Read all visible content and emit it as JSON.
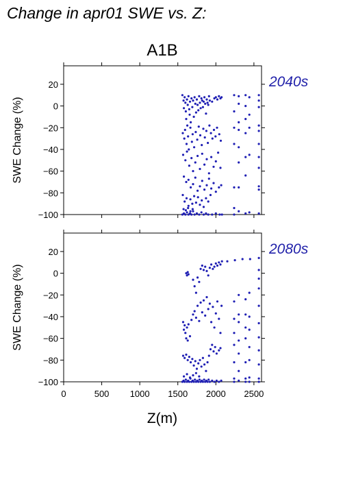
{
  "figure": {
    "title": "Change in apr01 SWE vs. Z:",
    "scenario": "A1B",
    "xlabel": "Z(m)"
  },
  "colors": {
    "points": "#1f1fb4",
    "period_label": "#2222aa",
    "axis": "#000000"
  },
  "chart_data": [
    {
      "type": "scatter",
      "period": "2040s",
      "ylabel": "SWE Change (%)",
      "xlim": [
        0,
        2600
      ],
      "ylim": [
        -100,
        37
      ],
      "xticks": [
        0,
        500,
        1000,
        1500,
        2000,
        2500
      ],
      "yticks": [
        -100,
        -80,
        -60,
        -40,
        -20,
        0,
        20
      ],
      "xticklabels_shown": false,
      "points": [
        [
          1560,
          10
        ],
        [
          1575,
          5
        ],
        [
          1580,
          -2
        ],
        [
          1590,
          8
        ],
        [
          1600,
          3
        ],
        [
          1605,
          -5
        ],
        [
          1610,
          -12
        ],
        [
          1620,
          6
        ],
        [
          1625,
          -18
        ],
        [
          1630,
          1
        ],
        [
          1640,
          9
        ],
        [
          1650,
          -3
        ],
        [
          1655,
          -8
        ],
        [
          1660,
          4
        ],
        [
          1670,
          -15
        ],
        [
          1680,
          7
        ],
        [
          1690,
          -1
        ],
        [
          1700,
          5
        ],
        [
          1710,
          -10
        ],
        [
          1720,
          8
        ],
        [
          1730,
          2
        ],
        [
          1740,
          -6
        ],
        [
          1750,
          6
        ],
        [
          1760,
          1
        ],
        [
          1770,
          -4
        ],
        [
          1780,
          9
        ],
        [
          1790,
          3
        ],
        [
          1800,
          -2
        ],
        [
          1810,
          7
        ],
        [
          1820,
          5
        ],
        [
          1830,
          -1
        ],
        [
          1840,
          4
        ],
        [
          1850,
          8
        ],
        [
          1860,
          2
        ],
        [
          1870,
          -7
        ],
        [
          1880,
          6
        ],
        [
          1890,
          3
        ],
        [
          1900,
          1
        ],
        [
          1910,
          9
        ],
        [
          1920,
          5
        ],
        [
          1950,
          4
        ],
        [
          1980,
          7
        ],
        [
          2000,
          8
        ],
        [
          2020,
          6
        ],
        [
          2040,
          9
        ],
        [
          2060,
          7
        ],
        [
          2075,
          8
        ],
        [
          1565,
          -25
        ],
        [
          1585,
          -30
        ],
        [
          1595,
          -22
        ],
        [
          1615,
          -35
        ],
        [
          1635,
          -28
        ],
        [
          1645,
          -40
        ],
        [
          1665,
          -20
        ],
        [
          1685,
          -33
        ],
        [
          1695,
          -26
        ],
        [
          1715,
          -38
        ],
        [
          1735,
          -24
        ],
        [
          1755,
          -31
        ],
        [
          1775,
          -19
        ],
        [
          1795,
          -27
        ],
        [
          1815,
          -36
        ],
        [
          1835,
          -21
        ],
        [
          1855,
          -29
        ],
        [
          1875,
          -23
        ],
        [
          1895,
          -34
        ],
        [
          1915,
          -18
        ],
        [
          1935,
          -25
        ],
        [
          1955,
          -30
        ],
        [
          1975,
          -22
        ],
        [
          1995,
          -28
        ],
        [
          2015,
          -20
        ],
        [
          2045,
          -26
        ],
        [
          2065,
          -32
        ],
        [
          1570,
          -45
        ],
        [
          1600,
          -50
        ],
        [
          1620,
          -42
        ],
        [
          1650,
          -55
        ],
        [
          1680,
          -48
        ],
        [
          1700,
          -60
        ],
        [
          1730,
          -52
        ],
        [
          1760,
          -46
        ],
        [
          1790,
          -58
        ],
        [
          1820,
          -44
        ],
        [
          1850,
          -54
        ],
        [
          1880,
          -49
        ],
        [
          1910,
          -62
        ],
        [
          1940,
          -47
        ],
        [
          1970,
          -56
        ],
        [
          2000,
          -51
        ],
        [
          2030,
          -43
        ],
        [
          2060,
          -57
        ],
        [
          1580,
          -65
        ],
        [
          1610,
          -70
        ],
        [
          1640,
          -68
        ],
        [
          1670,
          -75
        ],
        [
          1700,
          -72
        ],
        [
          1730,
          -66
        ],
        [
          1760,
          -78
        ],
        [
          1790,
          -74
        ],
        [
          1820,
          -69
        ],
        [
          1850,
          -77
        ],
        [
          1880,
          -73
        ],
        [
          1910,
          -67
        ],
        [
          1940,
          -76
        ],
        [
          1970,
          -71
        ],
        [
          2000,
          -79
        ],
        [
          2040,
          -75
        ],
        [
          2070,
          -73
        ],
        [
          1565,
          -82
        ],
        [
          1590,
          -88
        ],
        [
          1615,
          -85
        ],
        [
          1640,
          -92
        ],
        [
          1665,
          -86
        ],
        [
          1690,
          -90
        ],
        [
          1715,
          -83
        ],
        [
          1740,
          -89
        ],
        [
          1765,
          -84
        ],
        [
          1790,
          -91
        ],
        [
          1815,
          -87
        ],
        [
          1840,
          -93
        ],
        [
          1870,
          -85
        ],
        [
          1900,
          -88
        ],
        [
          1930,
          -82
        ],
        [
          1560,
          -100
        ],
        [
          1580,
          -99
        ],
        [
          1600,
          -100
        ],
        [
          1620,
          -98
        ],
        [
          1640,
          -100
        ],
        [
          1660,
          -99
        ],
        [
          1680,
          -100
        ],
        [
          1700,
          -97
        ],
        [
          1720,
          -100
        ],
        [
          1750,
          -99
        ],
        [
          1780,
          -100
        ],
        [
          1810,
          -98
        ],
        [
          1840,
          -100
        ],
        [
          1870,
          -99
        ],
        [
          1900,
          -100
        ],
        [
          1950,
          -100
        ],
        [
          2000,
          -99
        ],
        [
          2050,
          -100
        ],
        [
          2080,
          -100
        ],
        [
          1575,
          -95
        ],
        [
          1605,
          -96
        ],
        [
          1635,
          -94
        ],
        [
          1665,
          -97
        ],
        [
          1695,
          -95
        ],
        [
          2240,
          10
        ],
        [
          2240,
          -5
        ],
        [
          2240,
          -20
        ],
        [
          2240,
          -35
        ],
        [
          2240,
          -75
        ],
        [
          2240,
          -94
        ],
        [
          2240,
          -100
        ],
        [
          2300,
          9
        ],
        [
          2300,
          2
        ],
        [
          2300,
          -15
        ],
        [
          2300,
          -22
        ],
        [
          2300,
          -38
        ],
        [
          2300,
          -52
        ],
        [
          2300,
          -75
        ],
        [
          2300,
          -97
        ],
        [
          2390,
          10
        ],
        [
          2390,
          0
        ],
        [
          2390,
          -12
        ],
        [
          2390,
          -25
        ],
        [
          2390,
          -47
        ],
        [
          2390,
          -64
        ],
        [
          2390,
          -99
        ],
        [
          2440,
          8
        ],
        [
          2440,
          -8
        ],
        [
          2440,
          -20
        ],
        [
          2440,
          -45
        ],
        [
          2440,
          -98
        ],
        [
          2565,
          10
        ],
        [
          2565,
          5
        ],
        [
          2565,
          -1
        ],
        [
          2565,
          -18
        ],
        [
          2565,
          -23
        ],
        [
          2565,
          -35
        ],
        [
          2565,
          -47
        ],
        [
          2565,
          -57
        ],
        [
          2565,
          -74
        ],
        [
          2565,
          -77
        ],
        [
          2565,
          -99
        ]
      ]
    },
    {
      "type": "scatter",
      "period": "2080s",
      "ylabel": "SWE Change (%)",
      "xlim": [
        0,
        2600
      ],
      "ylim": [
        -100,
        37
      ],
      "xticks": [
        0,
        500,
        1000,
        1500,
        2000,
        2500
      ],
      "xticklabels": [
        "0",
        "500",
        "1000",
        "1500",
        "2000",
        "2500"
      ],
      "yticks": [
        -100,
        -80,
        -60,
        -40,
        -20,
        0,
        20
      ],
      "points": [
        [
          1610,
          0
        ],
        [
          1620,
          -2
        ],
        [
          1630,
          1
        ],
        [
          1640,
          -1
        ],
        [
          1700,
          -6
        ],
        [
          1720,
          -12
        ],
        [
          1740,
          -18
        ],
        [
          1760,
          -4
        ],
        [
          1780,
          -8
        ],
        [
          1800,
          4
        ],
        [
          1820,
          7
        ],
        [
          1840,
          3
        ],
        [
          1860,
          6
        ],
        [
          1880,
          2
        ],
        [
          1900,
          -2
        ],
        [
          1920,
          5
        ],
        [
          1940,
          8
        ],
        [
          1960,
          4
        ],
        [
          1980,
          6
        ],
        [
          2000,
          9
        ],
        [
          2020,
          7
        ],
        [
          2040,
          10
        ],
        [
          2060,
          8
        ],
        [
          2080,
          11
        ],
        [
          2150,
          11
        ],
        [
          2250,
          12
        ],
        [
          2350,
          13
        ],
        [
          2450,
          13
        ],
        [
          2565,
          14
        ],
        [
          1570,
          -45
        ],
        [
          1580,
          -52
        ],
        [
          1590,
          -48
        ],
        [
          1600,
          -55
        ],
        [
          1610,
          -60
        ],
        [
          1620,
          -50
        ],
        [
          1630,
          -62
        ],
        [
          1640,
          -47
        ],
        [
          1660,
          -58
        ],
        [
          1680,
          -43
        ],
        [
          1700,
          -38
        ],
        [
          1720,
          -35
        ],
        [
          1740,
          -41
        ],
        [
          1760,
          -30
        ],
        [
          1780,
          -44
        ],
        [
          1800,
          -27
        ],
        [
          1820,
          -36
        ],
        [
          1840,
          -25
        ],
        [
          1860,
          -39
        ],
        [
          1880,
          -22
        ],
        [
          1900,
          -33
        ],
        [
          1920,
          -28
        ],
        [
          1940,
          -45
        ],
        [
          1960,
          -31
        ],
        [
          1980,
          -50
        ],
        [
          2000,
          -37
        ],
        [
          2020,
          -26
        ],
        [
          2040,
          -42
        ],
        [
          2060,
          -55
        ],
        [
          2075,
          -30
        ],
        [
          1570,
          -76
        ],
        [
          1590,
          -78
        ],
        [
          1610,
          -75
        ],
        [
          1630,
          -80
        ],
        [
          1650,
          -77
        ],
        [
          1670,
          -82
        ],
        [
          1690,
          -79
        ],
        [
          1710,
          -85
        ],
        [
          1730,
          -81
        ],
        [
          1750,
          -88
        ],
        [
          1770,
          -83
        ],
        [
          1790,
          -80
        ],
        [
          1810,
          -86
        ],
        [
          1830,
          -78
        ],
        [
          1850,
          -84
        ],
        [
          1870,
          -90
        ],
        [
          1890,
          -82
        ],
        [
          1910,
          -76
        ],
        [
          1930,
          -70
        ],
        [
          1950,
          -66
        ],
        [
          1970,
          -72
        ],
        [
          1990,
          -68
        ],
        [
          2010,
          -74
        ],
        [
          2040,
          -71
        ],
        [
          2060,
          -69
        ],
        [
          1560,
          -100
        ],
        [
          1575,
          -99
        ],
        [
          1590,
          -100
        ],
        [
          1605,
          -98
        ],
        [
          1620,
          -100
        ],
        [
          1635,
          -99
        ],
        [
          1650,
          -100
        ],
        [
          1665,
          -97
        ],
        [
          1680,
          -100
        ],
        [
          1695,
          -99
        ],
        [
          1710,
          -100
        ],
        [
          1725,
          -98
        ],
        [
          1740,
          -100
        ],
        [
          1755,
          -99
        ],
        [
          1770,
          -100
        ],
        [
          1785,
          -98
        ],
        [
          1800,
          -100
        ],
        [
          1815,
          -99
        ],
        [
          1830,
          -100
        ],
        [
          1845,
          -98
        ],
        [
          1860,
          -100
        ],
        [
          1875,
          -99
        ],
        [
          1890,
          -100
        ],
        [
          1905,
          -98
        ],
        [
          1920,
          -100
        ],
        [
          1950,
          -99
        ],
        [
          1980,
          -100
        ],
        [
          2010,
          -99
        ],
        [
          2040,
          -100
        ],
        [
          2070,
          -99
        ],
        [
          1580,
          -95
        ],
        [
          1620,
          -93
        ],
        [
          1660,
          -96
        ],
        [
          1700,
          -94
        ],
        [
          1740,
          -92
        ],
        [
          1780,
          -95
        ],
        [
          2240,
          -26
        ],
        [
          2240,
          -42
        ],
        [
          2240,
          -55
        ],
        [
          2240,
          -66
        ],
        [
          2240,
          -82
        ],
        [
          2240,
          -97
        ],
        [
          2240,
          -100
        ],
        [
          2300,
          -20
        ],
        [
          2300,
          -38
        ],
        [
          2300,
          -45
        ],
        [
          2300,
          -62
        ],
        [
          2300,
          -74
        ],
        [
          2300,
          -90
        ],
        [
          2300,
          -99
        ],
        [
          2390,
          -24
        ],
        [
          2390,
          -38
        ],
        [
          2390,
          -50
        ],
        [
          2390,
          -60
        ],
        [
          2390,
          -82
        ],
        [
          2390,
          -97
        ],
        [
          2390,
          -100
        ],
        [
          2440,
          -18
        ],
        [
          2440,
          -40
        ],
        [
          2440,
          -52
        ],
        [
          2440,
          -68
        ],
        [
          2440,
          -80
        ],
        [
          2440,
          -96
        ],
        [
          2440,
          -100
        ],
        [
          2565,
          3
        ],
        [
          2565,
          -5
        ],
        [
          2565,
          -14
        ],
        [
          2565,
          -30
        ],
        [
          2565,
          -46
        ],
        [
          2565,
          -59
        ],
        [
          2565,
          -71
        ],
        [
          2565,
          -84
        ],
        [
          2565,
          -97
        ],
        [
          2565,
          -100
        ]
      ]
    }
  ]
}
